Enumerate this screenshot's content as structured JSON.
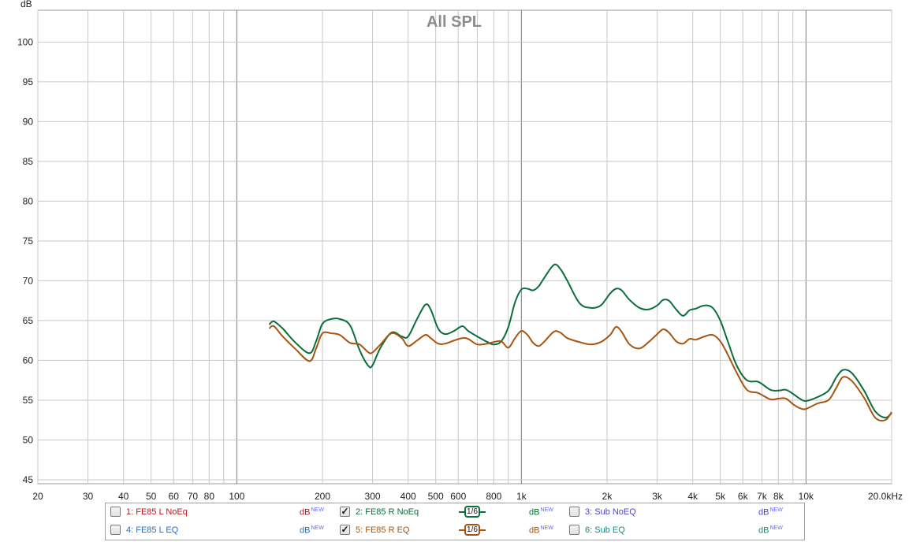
{
  "chart_data": {
    "type": "line",
    "title": "All SPL",
    "ylabel": "dB",
    "xlabel": "",
    "xscale": "log",
    "xlim": [
      20,
      20000
    ],
    "ylim": [
      44.5,
      104
    ],
    "grid": true,
    "x_tick_labels": [
      "20",
      "30",
      "40",
      "50",
      "60",
      "70",
      "80",
      "100",
      "200",
      "300",
      "400",
      "500",
      "600",
      "800",
      "1k",
      "2k",
      "3k",
      "4k",
      "5k",
      "6k",
      "7k",
      "8k",
      "10k",
      "20.0kHz"
    ],
    "x_tick_values": [
      20,
      30,
      40,
      50,
      60,
      70,
      80,
      100,
      200,
      300,
      400,
      500,
      600,
      800,
      1000,
      2000,
      3000,
      4000,
      5000,
      6000,
      7000,
      8000,
      10000,
      20000
    ],
    "y_tick_values": [
      45,
      50,
      55,
      60,
      65,
      70,
      75,
      80,
      85,
      90,
      95,
      100
    ],
    "series": [
      {
        "name": "2: FE85 R NoEq",
        "color": "#0a6e3c",
        "x": [
          130,
          135,
          145,
          160,
          180,
          190,
          200,
          215,
          230,
          250,
          270,
          290,
          300,
          320,
          350,
          380,
          400,
          430,
          460,
          480,
          510,
          540,
          580,
          620,
          650,
          700,
          760,
          800,
          850,
          900,
          950,
          1000,
          1050,
          1100,
          1150,
          1200,
          1300,
          1370,
          1450,
          1600,
          1750,
          1900,
          2050,
          2150,
          2250,
          2400,
          2600,
          2800,
          3000,
          3150,
          3300,
          3500,
          3700,
          3900,
          4100,
          4400,
          4700,
          5000,
          5300,
          5700,
          6200,
          6800,
          7500,
          8000,
          8500,
          9000,
          9500,
          10000,
          11000,
          12000,
          12800,
          13500,
          14500,
          16000,
          17500,
          19000,
          20000
        ],
        "y": [
          64.5,
          64.9,
          64.0,
          62.3,
          60.9,
          62.4,
          64.6,
          65.2,
          65.2,
          64.4,
          61.3,
          59.3,
          59.4,
          61.6,
          63.5,
          63.0,
          63.0,
          65.2,
          67.0,
          66.4,
          64.0,
          63.3,
          63.7,
          64.3,
          63.7,
          63.0,
          62.3,
          62.0,
          62.4,
          64.2,
          67.3,
          68.9,
          69.0,
          68.8,
          69.3,
          70.3,
          72.0,
          71.5,
          70.0,
          67.2,
          66.6,
          66.9,
          68.4,
          69.0,
          68.8,
          67.6,
          66.6,
          66.4,
          66.9,
          67.6,
          67.5,
          66.4,
          65.6,
          66.3,
          66.5,
          66.9,
          66.6,
          65.0,
          62.5,
          59.4,
          57.5,
          57.3,
          56.3,
          56.2,
          56.3,
          55.8,
          55.2,
          54.9,
          55.4,
          56.2,
          57.9,
          58.8,
          58.4,
          56.2,
          53.6,
          52.8,
          53.4
        ]
      },
      {
        "name": "5: FE85 R EQ",
        "color": "#a65410",
        "x": [
          130,
          135,
          145,
          160,
          180,
          190,
          200,
          215,
          230,
          250,
          270,
          290,
          300,
          320,
          350,
          380,
          400,
          430,
          460,
          480,
          510,
          540,
          580,
          620,
          650,
          700,
          760,
          800,
          850,
          900,
          950,
          1000,
          1050,
          1100,
          1150,
          1200,
          1300,
          1370,
          1450,
          1600,
          1750,
          1900,
          2050,
          2150,
          2250,
          2400,
          2600,
          2800,
          3000,
          3150,
          3300,
          3500,
          3700,
          3900,
          4100,
          4400,
          4700,
          5000,
          5300,
          5700,
          6200,
          6800,
          7500,
          8000,
          8500,
          9000,
          9500,
          10000,
          11000,
          12000,
          12800,
          13500,
          14500,
          16000,
          17500,
          19000,
          20000
        ],
        "y": [
          64.0,
          64.3,
          63.0,
          61.5,
          59.9,
          61.5,
          63.4,
          63.4,
          63.2,
          62.2,
          62.0,
          61.0,
          61.0,
          62.0,
          63.4,
          62.8,
          61.8,
          62.5,
          63.2,
          62.8,
          62.1,
          62.1,
          62.5,
          62.8,
          62.7,
          62.0,
          62.1,
          62.3,
          62.4,
          61.6,
          62.8,
          63.7,
          63.2,
          62.2,
          61.8,
          62.3,
          63.6,
          63.5,
          62.8,
          62.3,
          62.0,
          62.3,
          63.2,
          64.2,
          63.6,
          62.0,
          61.5,
          62.3,
          63.3,
          63.9,
          63.5,
          62.4,
          62.1,
          62.7,
          62.6,
          63.0,
          63.2,
          62.4,
          60.8,
          58.5,
          56.3,
          55.9,
          55.1,
          55.2,
          55.2,
          54.5,
          54.0,
          53.9,
          54.6,
          55.0,
          56.6,
          57.9,
          57.4,
          55.3,
          52.8,
          52.5,
          53.5
        ]
      }
    ],
    "legend": [
      {
        "label": "1: FE85 L NoEq",
        "checked": false,
        "color": "#c0141e"
      },
      {
        "label": "2: FE85 R NoEq",
        "checked": true,
        "color": "#0a6e3c",
        "smoothing": "1/6"
      },
      {
        "label": "3: Sub NoEQ",
        "checked": false,
        "color": "#4b46c8"
      },
      {
        "label": "4: FE85 L EQ",
        "checked": false,
        "color": "#1e6ec8"
      },
      {
        "label": "5: FE85 R EQ",
        "checked": true,
        "color": "#a65410",
        "smoothing": "1/6"
      },
      {
        "label": "6: Sub EQ",
        "checked": false,
        "color": "#148c82"
      }
    ],
    "unit_label": "dB",
    "unit_badge": "NEW"
  }
}
